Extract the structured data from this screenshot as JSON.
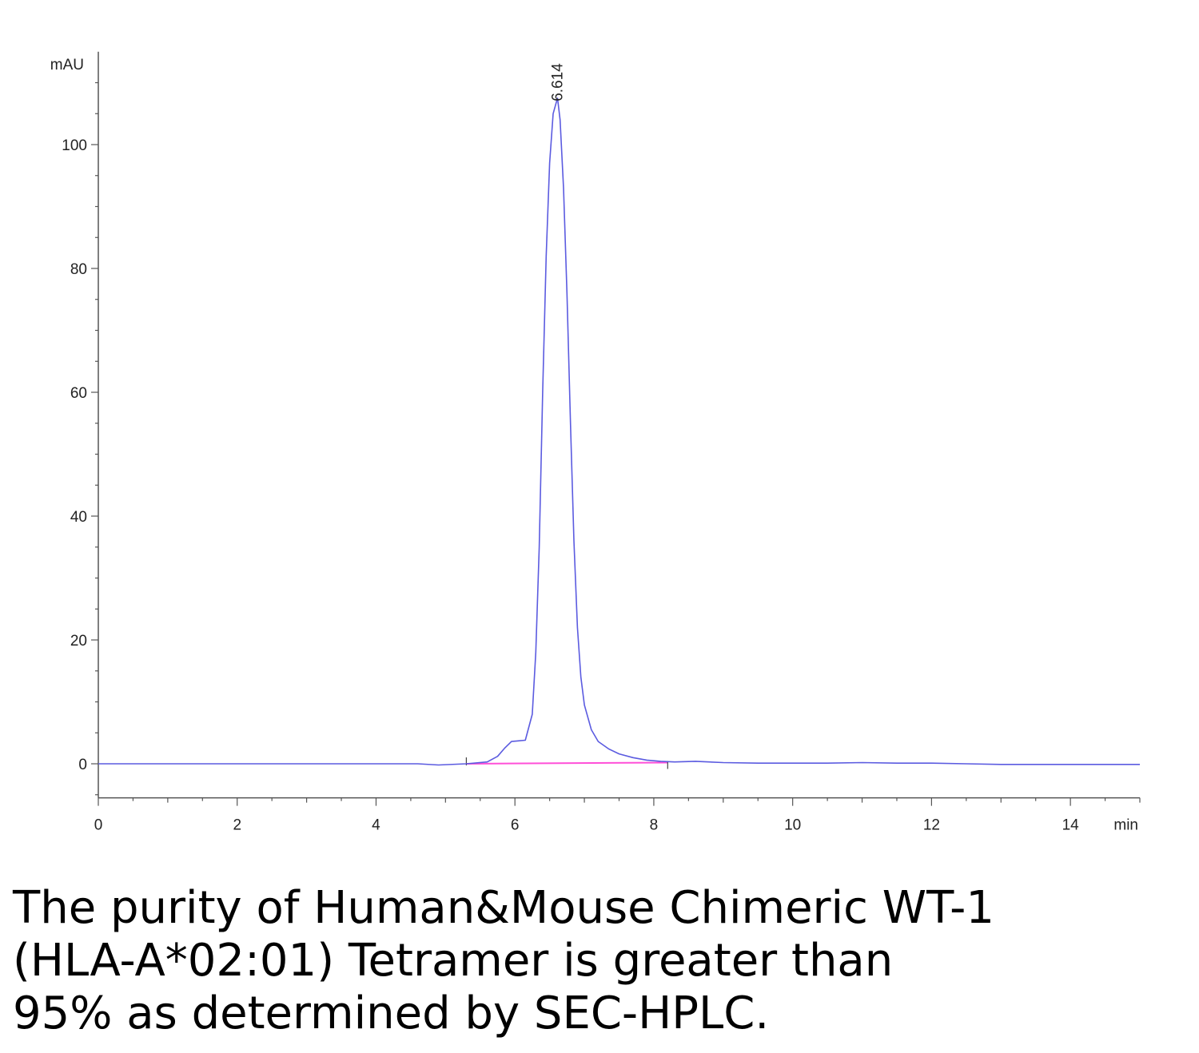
{
  "chart_data": {
    "type": "line",
    "ylabel": "mAU",
    "xlabel": "min",
    "xlim": [
      0,
      15
    ],
    "ylim": [
      -5.5,
      115
    ],
    "x_ticks": [
      0,
      2,
      4,
      6,
      8,
      10,
      12,
      14
    ],
    "y_ticks": [
      0,
      20,
      40,
      60,
      80,
      100
    ],
    "peak_label": "6.614",
    "peak_label_x": 6.614,
    "series": [
      {
        "color": "#5b5be0",
        "x": [
          0,
          4.6,
          4.9,
          5.3,
          5.6,
          5.75,
          5.85,
          5.95,
          6.05,
          6.15,
          6.25,
          6.3,
          6.35,
          6.4,
          6.45,
          6.5,
          6.55,
          6.6,
          6.614,
          6.65,
          6.7,
          6.75,
          6.8,
          6.85,
          6.9,
          6.95,
          7.0,
          7.1,
          7.2,
          7.35,
          7.5,
          7.7,
          7.9,
          8.1,
          8.3,
          8.6,
          9.0,
          9.5,
          10.0,
          10.5,
          11.0,
          11.5,
          12.0,
          12.5,
          13.0,
          14.0,
          15.0
        ],
        "y": [
          0,
          0,
          -0.2,
          0,
          0.3,
          1.2,
          2.5,
          3.6,
          3.7,
          3.8,
          8,
          18,
          35,
          60,
          82,
          97,
          105,
          107,
          107.5,
          104,
          93,
          76,
          55,
          36,
          22,
          14,
          9.5,
          5.5,
          3.6,
          2.4,
          1.6,
          1.0,
          0.6,
          0.4,
          0.3,
          0.4,
          0.2,
          0.1,
          0.1,
          0.1,
          0.2,
          0.1,
          0.1,
          0,
          -0.1,
          -0.1,
          -0.1
        ]
      }
    ],
    "baseline": {
      "color": "#ff4fd8",
      "x": [
        5.3,
        8.2
      ],
      "y": [
        0,
        0.2
      ]
    }
  },
  "caption": "The purity of Human&Mouse Chimeric WT-1\n(HLA-A*02:01) Tetramer is greater than\n95% as determined by SEC-HPLC."
}
